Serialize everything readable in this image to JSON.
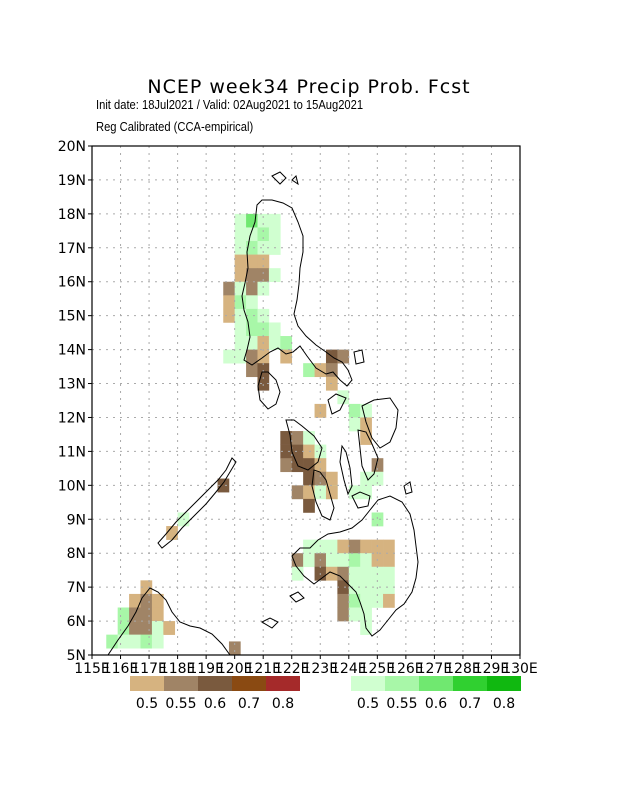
{
  "header": {
    "title": "NCEP week34 Precip Prob. Fcst",
    "init_line": "Init date: 18Jul2021 / Valid: 02Aug2021 to 15Aug2021",
    "method_line": "Reg Calibrated (CCA-empirical)"
  },
  "axes": {
    "lon_ticks": [
      "115E",
      "116E",
      "117E",
      "118E",
      "119E",
      "120E",
      "121E",
      "122E",
      "123E",
      "124E",
      "125E",
      "126E",
      "127E",
      "128E",
      "129E",
      "130E"
    ],
    "lat_ticks": [
      "5N",
      "6N",
      "7N",
      "8N",
      "9N",
      "10N",
      "11N",
      "12N",
      "13N",
      "14N",
      "15N",
      "16N",
      "17N",
      "18N",
      "19N",
      "20N"
    ],
    "lon_range": [
      115,
      130
    ],
    "lat_range": [
      5,
      20
    ],
    "grid": "dotted",
    "grid_color": "#aaaaaa"
  },
  "legend": {
    "below": {
      "labels": [
        "0.5",
        "0.55",
        "0.6",
        "0.7",
        "0.8"
      ],
      "colors": [
        "#d6b380",
        "#a08466",
        "#7a5a3e",
        "#8a4a12",
        "#a52a2a"
      ]
    },
    "above": {
      "labels": [
        "0.5",
        "0.55",
        "0.6",
        "0.7",
        "0.8"
      ],
      "colors": [
        "#d0ffd0",
        "#a8f7a8",
        "#70e870",
        "#30d030",
        "#10b810"
      ]
    }
  },
  "map_data": {
    "cell_size_deg": 0.4,
    "categories": {
      "B1": "#d6b380",
      "B2": "#a08466",
      "B3": "#7a5a3e",
      "A1": "#d0ffd0",
      "A2": "#a8f7a8",
      "A3": "#70e870"
    },
    "cells": [
      [
        120.2,
        17.8,
        "A1"
      ],
      [
        120.6,
        17.8,
        "A3"
      ],
      [
        121.0,
        17.8,
        "A1"
      ],
      [
        121.4,
        17.8,
        "A1"
      ],
      [
        120.2,
        17.4,
        "A1"
      ],
      [
        120.6,
        17.4,
        "A1"
      ],
      [
        121.0,
        17.4,
        "A2"
      ],
      [
        121.4,
        17.4,
        "A1"
      ],
      [
        120.2,
        17.0,
        "A1"
      ],
      [
        120.6,
        17.0,
        "A2"
      ],
      [
        121.0,
        17.0,
        "A1"
      ],
      [
        121.4,
        17.0,
        "A1"
      ],
      [
        120.2,
        16.6,
        "B1"
      ],
      [
        120.6,
        16.6,
        "B1"
      ],
      [
        121.0,
        16.6,
        "B1"
      ],
      [
        120.2,
        16.2,
        "B1"
      ],
      [
        120.6,
        16.2,
        "B2"
      ],
      [
        121.0,
        16.2,
        "B2"
      ],
      [
        121.4,
        16.2,
        "A1"
      ],
      [
        119.8,
        15.8,
        "B2"
      ],
      [
        120.2,
        15.8,
        "A1"
      ],
      [
        120.6,
        15.8,
        "B2"
      ],
      [
        121.0,
        15.8,
        "A1"
      ],
      [
        119.8,
        15.4,
        "B1"
      ],
      [
        120.2,
        15.4,
        "A2"
      ],
      [
        120.6,
        15.4,
        "A1"
      ],
      [
        119.8,
        15.0,
        "B1"
      ],
      [
        120.2,
        15.0,
        "A1"
      ],
      [
        120.6,
        15.0,
        "A2"
      ],
      [
        121.0,
        15.0,
        "A1"
      ],
      [
        120.2,
        14.6,
        "A1"
      ],
      [
        120.6,
        14.6,
        "A2"
      ],
      [
        121.0,
        14.6,
        "A2"
      ],
      [
        121.4,
        14.6,
        "A1"
      ],
      [
        120.2,
        14.2,
        "A1"
      ],
      [
        120.6,
        14.2,
        "A1"
      ],
      [
        121.0,
        14.2,
        "B1"
      ],
      [
        121.4,
        14.2,
        "A1"
      ],
      [
        121.8,
        14.2,
        "A2"
      ],
      [
        119.8,
        13.8,
        "A1"
      ],
      [
        120.2,
        13.8,
        "A1"
      ],
      [
        120.6,
        13.8,
        "B2"
      ],
      [
        121.0,
        13.8,
        "B1"
      ],
      [
        121.8,
        13.8,
        "B1"
      ],
      [
        123.4,
        13.8,
        "B3"
      ],
      [
        123.8,
        13.8,
        "B2"
      ],
      [
        120.6,
        13.4,
        "B2"
      ],
      [
        121.0,
        13.4,
        "B3"
      ],
      [
        122.6,
        13.4,
        "A2"
      ],
      [
        123.0,
        13.4,
        "B1"
      ],
      [
        123.4,
        13.4,
        "B2"
      ],
      [
        121.0,
        13.0,
        "B3"
      ],
      [
        123.4,
        13.0,
        "B1"
      ],
      [
        123.0,
        12.2,
        "B1"
      ],
      [
        123.8,
        12.6,
        "A1"
      ],
      [
        124.2,
        12.2,
        "A2"
      ],
      [
        124.6,
        12.2,
        "A1"
      ],
      [
        124.2,
        11.8,
        "A1"
      ],
      [
        124.6,
        11.8,
        "B1"
      ],
      [
        124.6,
        11.4,
        "B1"
      ],
      [
        121.8,
        11.4,
        "B3"
      ],
      [
        122.2,
        11.4,
        "B2"
      ],
      [
        122.6,
        11.4,
        "A1"
      ],
      [
        121.8,
        11.0,
        "B3"
      ],
      [
        122.2,
        11.0,
        "B3"
      ],
      [
        122.6,
        11.0,
        "B1"
      ],
      [
        123.0,
        11.0,
        "A1"
      ],
      [
        121.8,
        10.6,
        "B2"
      ],
      [
        122.2,
        10.6,
        "B3"
      ],
      [
        122.6,
        10.6,
        "B3"
      ],
      [
        123.0,
        10.6,
        "B1"
      ],
      [
        125.0,
        10.6,
        "B2"
      ],
      [
        122.6,
        10.2,
        "B3"
      ],
      [
        123.0,
        10.2,
        "B2"
      ],
      [
        123.4,
        10.2,
        "B1"
      ],
      [
        124.6,
        10.2,
        "A1"
      ],
      [
        125.0,
        10.2,
        "A1"
      ],
      [
        122.2,
        9.8,
        "B2"
      ],
      [
        122.6,
        9.8,
        "B1"
      ],
      [
        123.0,
        9.8,
        "A1"
      ],
      [
        123.4,
        9.8,
        "A1"
      ],
      [
        124.2,
        9.8,
        "A1"
      ],
      [
        124.6,
        9.8,
        "A1"
      ],
      [
        119.6,
        10.0,
        "B3"
      ],
      [
        122.6,
        9.4,
        "B3"
      ],
      [
        123.4,
        9.8,
        "B1"
      ],
      [
        118.2,
        9.0,
        "A1"
      ],
      [
        117.8,
        8.6,
        "B1"
      ],
      [
        125.0,
        9.0,
        "A2"
      ],
      [
        122.6,
        8.2,
        "A1"
      ],
      [
        123.0,
        8.2,
        "A1"
      ],
      [
        123.4,
        8.2,
        "A1"
      ],
      [
        123.8,
        8.2,
        "B1"
      ],
      [
        124.2,
        8.2,
        "B2"
      ],
      [
        124.6,
        8.2,
        "B1"
      ],
      [
        125.0,
        8.2,
        "B1"
      ],
      [
        125.4,
        8.2,
        "B1"
      ],
      [
        122.2,
        7.8,
        "B2"
      ],
      [
        122.6,
        7.8,
        "A1"
      ],
      [
        123.0,
        7.8,
        "B2"
      ],
      [
        123.4,
        7.8,
        "A1"
      ],
      [
        123.8,
        7.8,
        "A1"
      ],
      [
        124.2,
        7.8,
        "A2"
      ],
      [
        124.6,
        7.8,
        "A1"
      ],
      [
        125.0,
        7.8,
        "B1"
      ],
      [
        125.4,
        7.8,
        "B1"
      ],
      [
        122.2,
        7.4,
        "A1"
      ],
      [
        123.0,
        7.4,
        "B3"
      ],
      [
        123.4,
        7.4,
        "B1"
      ],
      [
        123.8,
        7.4,
        "B2"
      ],
      [
        124.2,
        7.4,
        "A1"
      ],
      [
        124.6,
        7.4,
        "A1"
      ],
      [
        125.0,
        7.4,
        "A1"
      ],
      [
        125.4,
        7.4,
        "A1"
      ],
      [
        123.8,
        7.0,
        "B3"
      ],
      [
        124.2,
        7.0,
        "A1"
      ],
      [
        124.6,
        7.0,
        "A1"
      ],
      [
        125.0,
        7.0,
        "A1"
      ],
      [
        125.4,
        7.0,
        "A1"
      ],
      [
        123.8,
        6.6,
        "B2"
      ],
      [
        124.2,
        6.6,
        "A2"
      ],
      [
        124.6,
        6.6,
        "A1"
      ],
      [
        125.0,
        6.6,
        "A1"
      ],
      [
        125.4,
        6.6,
        "B1"
      ],
      [
        123.8,
        6.2,
        "B2"
      ],
      [
        124.2,
        6.2,
        "A1"
      ],
      [
        124.6,
        6.2,
        "A1"
      ],
      [
        124.6,
        5.8,
        "A1"
      ],
      [
        116.9,
        7.0,
        "B1"
      ],
      [
        116.5,
        6.6,
        "B1"
      ],
      [
        116.9,
        6.6,
        "B2"
      ],
      [
        117.3,
        6.6,
        "B1"
      ],
      [
        116.1,
        6.2,
        "A2"
      ],
      [
        116.5,
        6.2,
        "B2"
      ],
      [
        116.9,
        6.2,
        "B2"
      ],
      [
        117.3,
        6.2,
        "B1"
      ],
      [
        116.1,
        5.8,
        "A2"
      ],
      [
        116.5,
        5.8,
        "B2"
      ],
      [
        116.9,
        5.8,
        "B2"
      ],
      [
        117.3,
        5.8,
        "A1"
      ],
      [
        117.7,
        5.8,
        "B1"
      ],
      [
        115.7,
        5.4,
        "A2"
      ],
      [
        116.1,
        5.4,
        "A1"
      ],
      [
        116.5,
        5.4,
        "A1"
      ],
      [
        116.9,
        5.4,
        "A2"
      ],
      [
        117.3,
        5.4,
        "A1"
      ],
      [
        120.0,
        5.2,
        "B2"
      ]
    ]
  }
}
